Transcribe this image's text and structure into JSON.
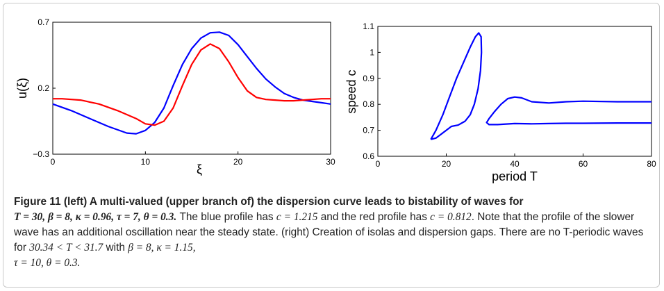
{
  "caption": {
    "lead_label": "Figure 11",
    "lead_text": " (left) A multi-valued (upper branch of) the dispersion curve leads to bistability of waves for",
    "lead_math": "T = 30, β = 8, κ = 0.96, τ = 7, θ = 0.3.",
    "body_1": " The blue profile has ",
    "body_c1": "c = 1.215",
    "body_2": " and the red profile has ",
    "body_c2": "c = 0.812",
    "body_3": ". Note that the profile of the slower wave has an additional oscillation near the steady state. (right) Creation of isolas and dispersion gaps. There are no T-periodic waves for ",
    "body_range": "30.34 < T < 31.7",
    "body_4": " with ",
    "body_params1": "β = 8, κ = 1.15,",
    "body_params2": "τ = 10, θ = 0.3."
  },
  "chart_data": [
    {
      "type": "line",
      "title": "",
      "xlabel": "ξ",
      "ylabel": "u(ξ)",
      "xlim": [
        0,
        30
      ],
      "ylim": [
        -0.3,
        0.7
      ],
      "x_ticks": [
        "0",
        "10",
        "20",
        "30"
      ],
      "y_ticks": [
        "−0.3",
        "0.2",
        "0.7"
      ],
      "grid": false,
      "series": [
        {
          "color": "#0000ff",
          "points": [
            [
              0,
              0.08
            ],
            [
              2,
              0.03
            ],
            [
              4,
              -0.03
            ],
            [
              6,
              -0.09
            ],
            [
              8,
              -0.14
            ],
            [
              9,
              -0.145
            ],
            [
              10,
              -0.12
            ],
            [
              11,
              -0.06
            ],
            [
              12,
              0.05
            ],
            [
              13,
              0.22
            ],
            [
              14,
              0.38
            ],
            [
              15,
              0.5
            ],
            [
              16,
              0.58
            ],
            [
              17,
              0.62
            ],
            [
              18,
              0.625
            ],
            [
              19,
              0.6
            ],
            [
              20,
              0.53
            ],
            [
              21,
              0.44
            ],
            [
              22,
              0.35
            ],
            [
              23,
              0.27
            ],
            [
              24,
              0.21
            ],
            [
              25,
              0.16
            ],
            [
              26,
              0.13
            ],
            [
              27,
              0.11
            ],
            [
              28,
              0.1
            ],
            [
              29,
              0.09
            ],
            [
              30,
              0.08
            ]
          ]
        },
        {
          "color": "#ff0000",
          "points": [
            [
              0,
              0.12
            ],
            [
              1,
              0.12
            ],
            [
              3,
              0.11
            ],
            [
              5,
              0.08
            ],
            [
              7,
              0.03
            ],
            [
              9,
              -0.03
            ],
            [
              10,
              -0.07
            ],
            [
              11,
              -0.08
            ],
            [
              12,
              -0.05
            ],
            [
              13,
              0.05
            ],
            [
              14,
              0.22
            ],
            [
              15,
              0.38
            ],
            [
              16,
              0.49
            ],
            [
              17,
              0.535
            ],
            [
              18,
              0.5
            ],
            [
              19,
              0.4
            ],
            [
              20,
              0.28
            ],
            [
              21,
              0.18
            ],
            [
              22,
              0.13
            ],
            [
              23,
              0.115
            ],
            [
              24,
              0.11
            ],
            [
              25,
              0.105
            ],
            [
              26,
              0.105
            ],
            [
              27,
              0.11
            ],
            [
              28,
              0.115
            ],
            [
              29,
              0.12
            ],
            [
              30,
              0.12
            ]
          ]
        }
      ]
    },
    {
      "type": "line",
      "title": "",
      "xlabel": "period T",
      "ylabel": "speed c",
      "xlim": [
        0,
        80
      ],
      "ylim": [
        0.6,
        1.1
      ],
      "x_ticks": [
        "0",
        "20",
        "40",
        "60",
        "80"
      ],
      "y_ticks": [
        "0.6",
        "0.7",
        "0.8",
        "0.9",
        "1",
        "1.1"
      ],
      "grid": false,
      "series": [
        {
          "color": "#0000ff",
          "points": [
            [
              15.5,
              0.665
            ],
            [
              17,
              0.7
            ],
            [
              19,
              0.76
            ],
            [
              21,
              0.83
            ],
            [
              23,
              0.9
            ],
            [
              25,
              0.96
            ],
            [
              27,
              1.02
            ],
            [
              28.5,
              1.06
            ],
            [
              29.5,
              1.075
            ],
            [
              30.2,
              1.06
            ],
            [
              30.3,
              1.0
            ],
            [
              30,
              0.93
            ],
            [
              29.3,
              0.86
            ],
            [
              28.2,
              0.8
            ],
            [
              27,
              0.76
            ],
            [
              25.5,
              0.735
            ],
            [
              23.5,
              0.72
            ],
            [
              21.5,
              0.715
            ],
            [
              20,
              0.7
            ],
            [
              18.5,
              0.685
            ],
            [
              17,
              0.67
            ],
            [
              15.5,
              0.665
            ]
          ]
        },
        {
          "color": "#0000ff",
          "points": [
            [
              80,
              0.81
            ],
            [
              70,
              0.81
            ],
            [
              60,
              0.812
            ],
            [
              55,
              0.81
            ],
            [
              50,
              0.805
            ],
            [
              45,
              0.81
            ],
            [
              42,
              0.825
            ],
            [
              40,
              0.828
            ],
            [
              38,
              0.822
            ],
            [
              36,
              0.8
            ],
            [
              34,
              0.77
            ],
            [
              32.5,
              0.745
            ],
            [
              31.8,
              0.73
            ],
            [
              32.5,
              0.722
            ],
            [
              35,
              0.722
            ],
            [
              40,
              0.726
            ],
            [
              45,
              0.725
            ],
            [
              50,
              0.726
            ],
            [
              55,
              0.727
            ],
            [
              60,
              0.727
            ],
            [
              70,
              0.728
            ],
            [
              80,
              0.728
            ]
          ]
        }
      ]
    }
  ]
}
